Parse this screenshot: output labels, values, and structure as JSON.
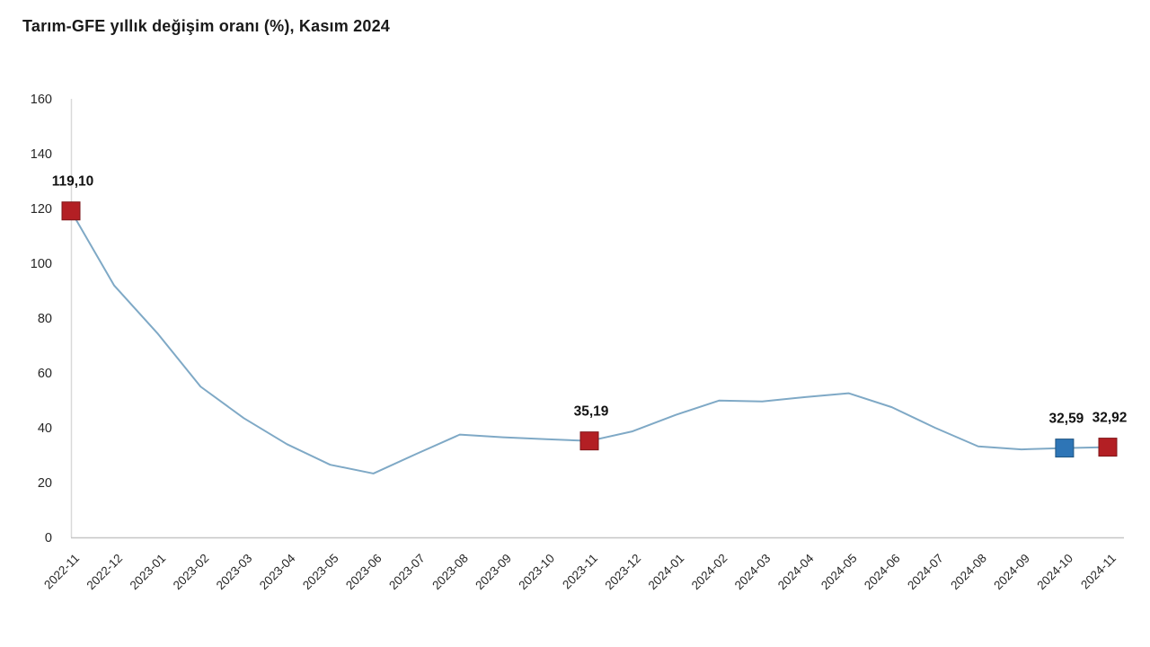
{
  "title": "Tarım-GFE yıllık değişim oranı (%), Kasım 2024",
  "colors": {
    "line": "#7FA9C6",
    "marker_red": "#B31F24",
    "marker_red_border": "#7E1518",
    "marker_blue": "#2E75B6",
    "marker_blue_border": "#205480",
    "axis_left": "#D9D9D9",
    "axis_bottom": "#C6C6C6",
    "tick_text": "#262626",
    "data_label_text": "#111111"
  },
  "chart_data": {
    "type": "line",
    "title": "Tarım-GFE yıllık değişim oranı (%), Kasım 2024",
    "xlabel": "",
    "ylabel": "",
    "ylim": [
      0,
      160
    ],
    "y_ticks": [
      0,
      20,
      40,
      60,
      80,
      100,
      120,
      140,
      160
    ],
    "grid": false,
    "legend": "none",
    "categories": [
      "2022-11",
      "2022-12",
      "2023-01",
      "2023-02",
      "2023-03",
      "2023-04",
      "2023-05",
      "2023-06",
      "2023-07",
      "2023-08",
      "2023-09",
      "2023-10",
      "2023-11",
      "2023-12",
      "2024-01",
      "2024-02",
      "2024-03",
      "2024-04",
      "2024-05",
      "2024-06",
      "2024-07",
      "2024-08",
      "2024-09",
      "2024-10",
      "2024-11"
    ],
    "series": [
      {
        "name": "Tarım-GFE yıllık değişim oranı (%)",
        "values": [
          119.1,
          91.9,
          74.5,
          55.0,
          43.5,
          34.0,
          26.5,
          23.3,
          30.5,
          37.5,
          36.5,
          35.8,
          35.19,
          38.7,
          44.7,
          49.9,
          49.6,
          51.2,
          52.6,
          47.5,
          40.0,
          33.2,
          32.1,
          32.59,
          32.92
        ]
      }
    ],
    "marked_points": [
      {
        "index": 0,
        "category": "2022-11",
        "value": 119.1,
        "label": "119,10",
        "color_key": "marker_red"
      },
      {
        "index": 12,
        "category": "2023-11",
        "value": 35.19,
        "label": "35,19",
        "color_key": "marker_red"
      },
      {
        "index": 23,
        "category": "2024-10",
        "value": 32.59,
        "label": "32,59",
        "color_key": "marker_blue"
      },
      {
        "index": 24,
        "category": "2024-11",
        "value": 32.92,
        "label": "32,92",
        "color_key": "marker_red"
      }
    ]
  }
}
